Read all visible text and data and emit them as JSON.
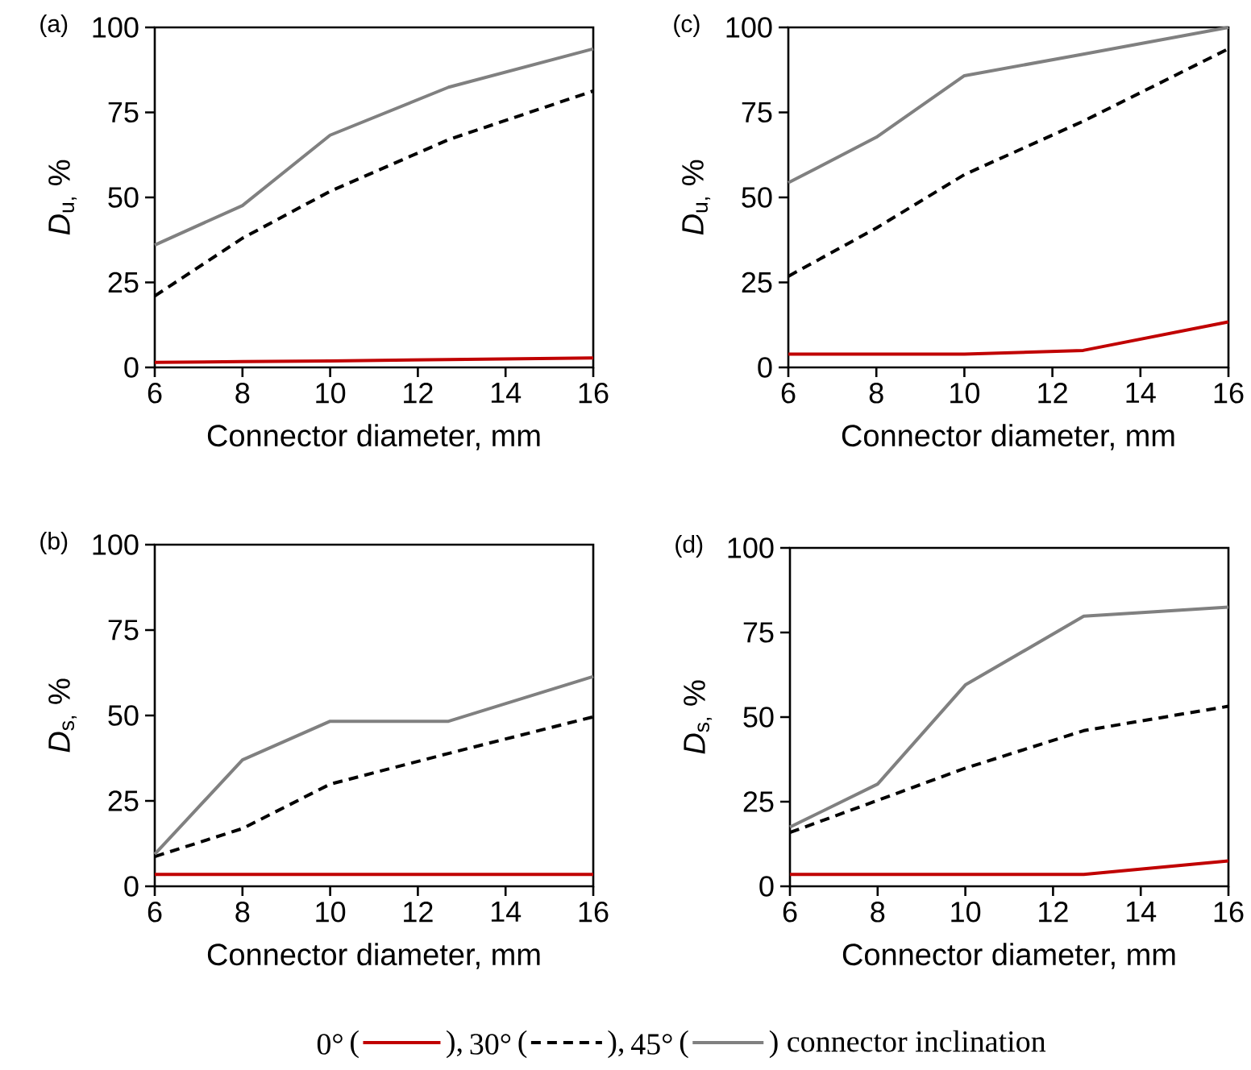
{
  "chart_data": [
    {
      "type": "line",
      "title": "(a)",
      "xlabel": "Connector diameter, mm",
      "ylabel": "*D*$_{u,}$ %",
      "x": [
        6,
        8,
        10,
        12.7,
        16
      ],
      "xlim": [
        6,
        16
      ],
      "xticks": [
        6,
        8,
        10,
        12,
        14,
        16
      ],
      "ylim": [
        0,
        100
      ],
      "yticks": [
        0,
        25,
        50,
        75,
        100
      ],
      "legend": "bottom",
      "annotations": [
        "(",
        "),",
        "(",
        "),",
        "(",
        ") connector inclination"
      ],
      "series": [
        {
          "name": "0°",
          "color": "#c00000",
          "line_style": "solid",
          "values": [
            1.5,
            1.7,
            1.9,
            2.3,
            2.8
          ]
        },
        {
          "name": "30°",
          "color": "#000000",
          "line_style": "dashed",
          "values": [
            21,
            38,
            51.8,
            67,
            81.3
          ]
        },
        {
          "name": "45°",
          "color": "#808080",
          "line_style": "solid",
          "values": [
            36,
            47.6,
            68.3,
            82.4,
            93.7
          ]
        }
      ]
    },
    {
      "type": "line",
      "title": "(c)",
      "xlabel": "Connector diameter, mm",
      "ylabel": "*D*$_{u,}$ %",
      "x": [
        6,
        8,
        10,
        12.7,
        16
      ],
      "xlim": [
        6,
        16
      ],
      "xticks": [
        6,
        8,
        10,
        12,
        14,
        16
      ],
      "ylim": [
        0,
        100
      ],
      "yticks": [
        0,
        25,
        50,
        75,
        100
      ],
      "series": [
        {
          "color": "#c00000",
          "line_style": "solid",
          "values": [
            3.9,
            3.9,
            3.9,
            5,
            13.4
          ]
        },
        {
          "color": "#000000",
          "line_style": "dashed",
          "values": [
            26.8,
            41,
            56.7,
            72.4,
            93.7
          ]
        },
        {
          "color": "#808080",
          "line_style": "solid",
          "values": [
            54.3,
            67.7,
            85.8,
            92.1,
            100
          ]
        }
      ]
    },
    {
      "type": "line",
      "title": "(b)",
      "xlabel": "Connector diameter, mm",
      "ylabel": "*D*$_{s,}$ %",
      "x": [
        6,
        8,
        10,
        12.7,
        16
      ],
      "xlim": [
        6,
        16
      ],
      "xticks": [
        6,
        8,
        10,
        12,
        14,
        16
      ],
      "ylim": [
        0,
        100
      ],
      "yticks": [
        0,
        25,
        50,
        75,
        100
      ],
      "series": [
        {
          "color": "#c00000",
          "line_style": "solid",
          "values": [
            3.5,
            3.5,
            3.5,
            3.5,
            3.5
          ]
        },
        {
          "color": "#000000",
          "line_style": "dashed",
          "values": [
            8.7,
            16.9,
            29.9,
            38.9,
            49.6
          ]
        },
        {
          "color": "#808080",
          "line_style": "solid",
          "values": [
            9.4,
            37,
            48.3,
            48.3,
            61.4
          ]
        }
      ]
    },
    {
      "type": "line",
      "title": "(d)",
      "xlabel": "Connector diameter, mm",
      "ylabel": "*D*$_{s,}$ %",
      "x": [
        6,
        8,
        10,
        12.7,
        16
      ],
      "xlim": [
        6,
        16
      ],
      "xticks": [
        6,
        8,
        10,
        12,
        14,
        16
      ],
      "ylim": [
        0,
        100
      ],
      "yticks": [
        0,
        25,
        50,
        75,
        100
      ],
      "series": [
        {
          "color": "#c00000",
          "line_style": "solid",
          "values": [
            3.5,
            3.5,
            3.5,
            3.5,
            7.5
          ]
        },
        {
          "color": "#000000",
          "line_style": "dashed",
          "values": [
            15.9,
            25.4,
            34.9,
            46,
            53.2
          ]
        },
        {
          "color": "#808080",
          "line_style": "solid",
          "values": [
            17.5,
            30.2,
            59.5,
            79.8,
            82.5
          ]
        }
      ]
    }
  ]
}
